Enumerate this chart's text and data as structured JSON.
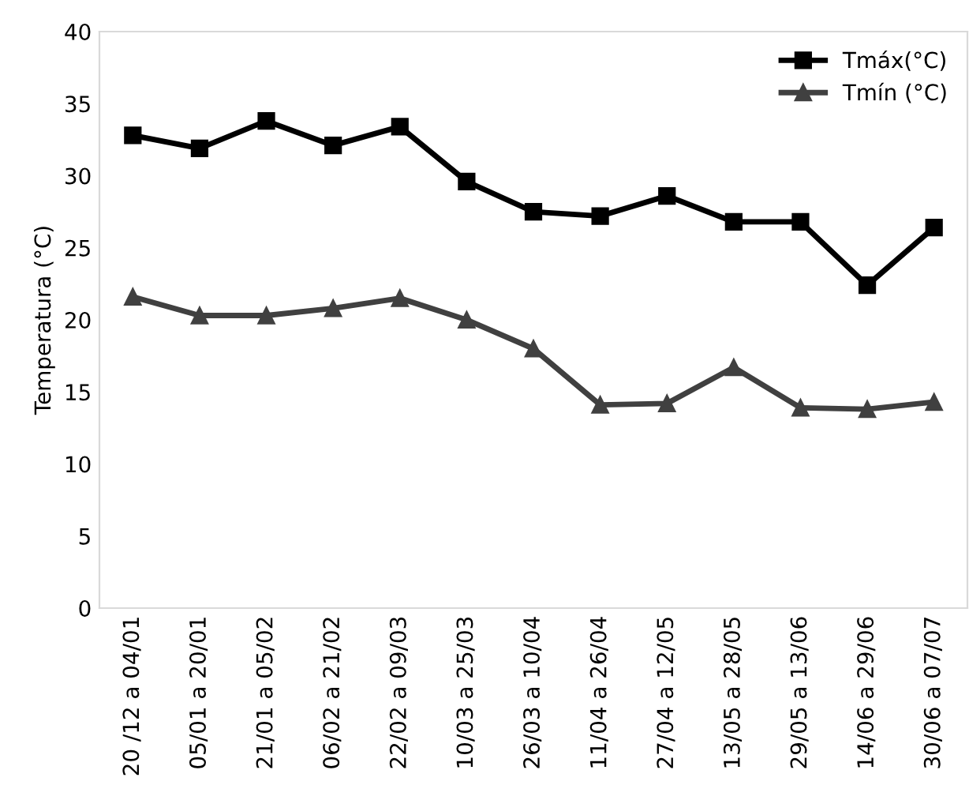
{
  "chart_data": {
    "type": "line",
    "ylabel": "Temperatura (°C)",
    "categories": [
      "20 /12 a 04/01",
      "05/01 a 20/01",
      "21/01 a 05/02",
      "06/02 a 21/02",
      "22/02 a 09/03",
      "10/03 a 25/03",
      "26/03 a 10/04",
      "11/04 a 26/04",
      "27/04 a 12/05",
      "13/05 a 28/05",
      "29/05 a 13/06",
      "14/06 a 29/06",
      "30/06 a 07/07"
    ],
    "series": [
      {
        "name": "Tmáx(°C)",
        "color": "#000000",
        "marker": "square",
        "values": [
          32.8,
          31.9,
          33.8,
          32.1,
          33.4,
          29.6,
          27.5,
          27.2,
          28.6,
          26.8,
          26.8,
          22.4,
          26.4
        ]
      },
      {
        "name": "Tmín (°C)",
        "color": "#404040",
        "marker": "triangle",
        "values": [
          21.6,
          20.3,
          20.3,
          20.8,
          21.5,
          20.0,
          18.0,
          14.1,
          14.2,
          16.7,
          13.9,
          13.8,
          14.3
        ]
      }
    ],
    "ylim": [
      0,
      40
    ],
    "yticks": [
      0,
      5,
      10,
      15,
      20,
      25,
      30,
      35,
      40
    ],
    "grid": false,
    "legend": "top right"
  }
}
